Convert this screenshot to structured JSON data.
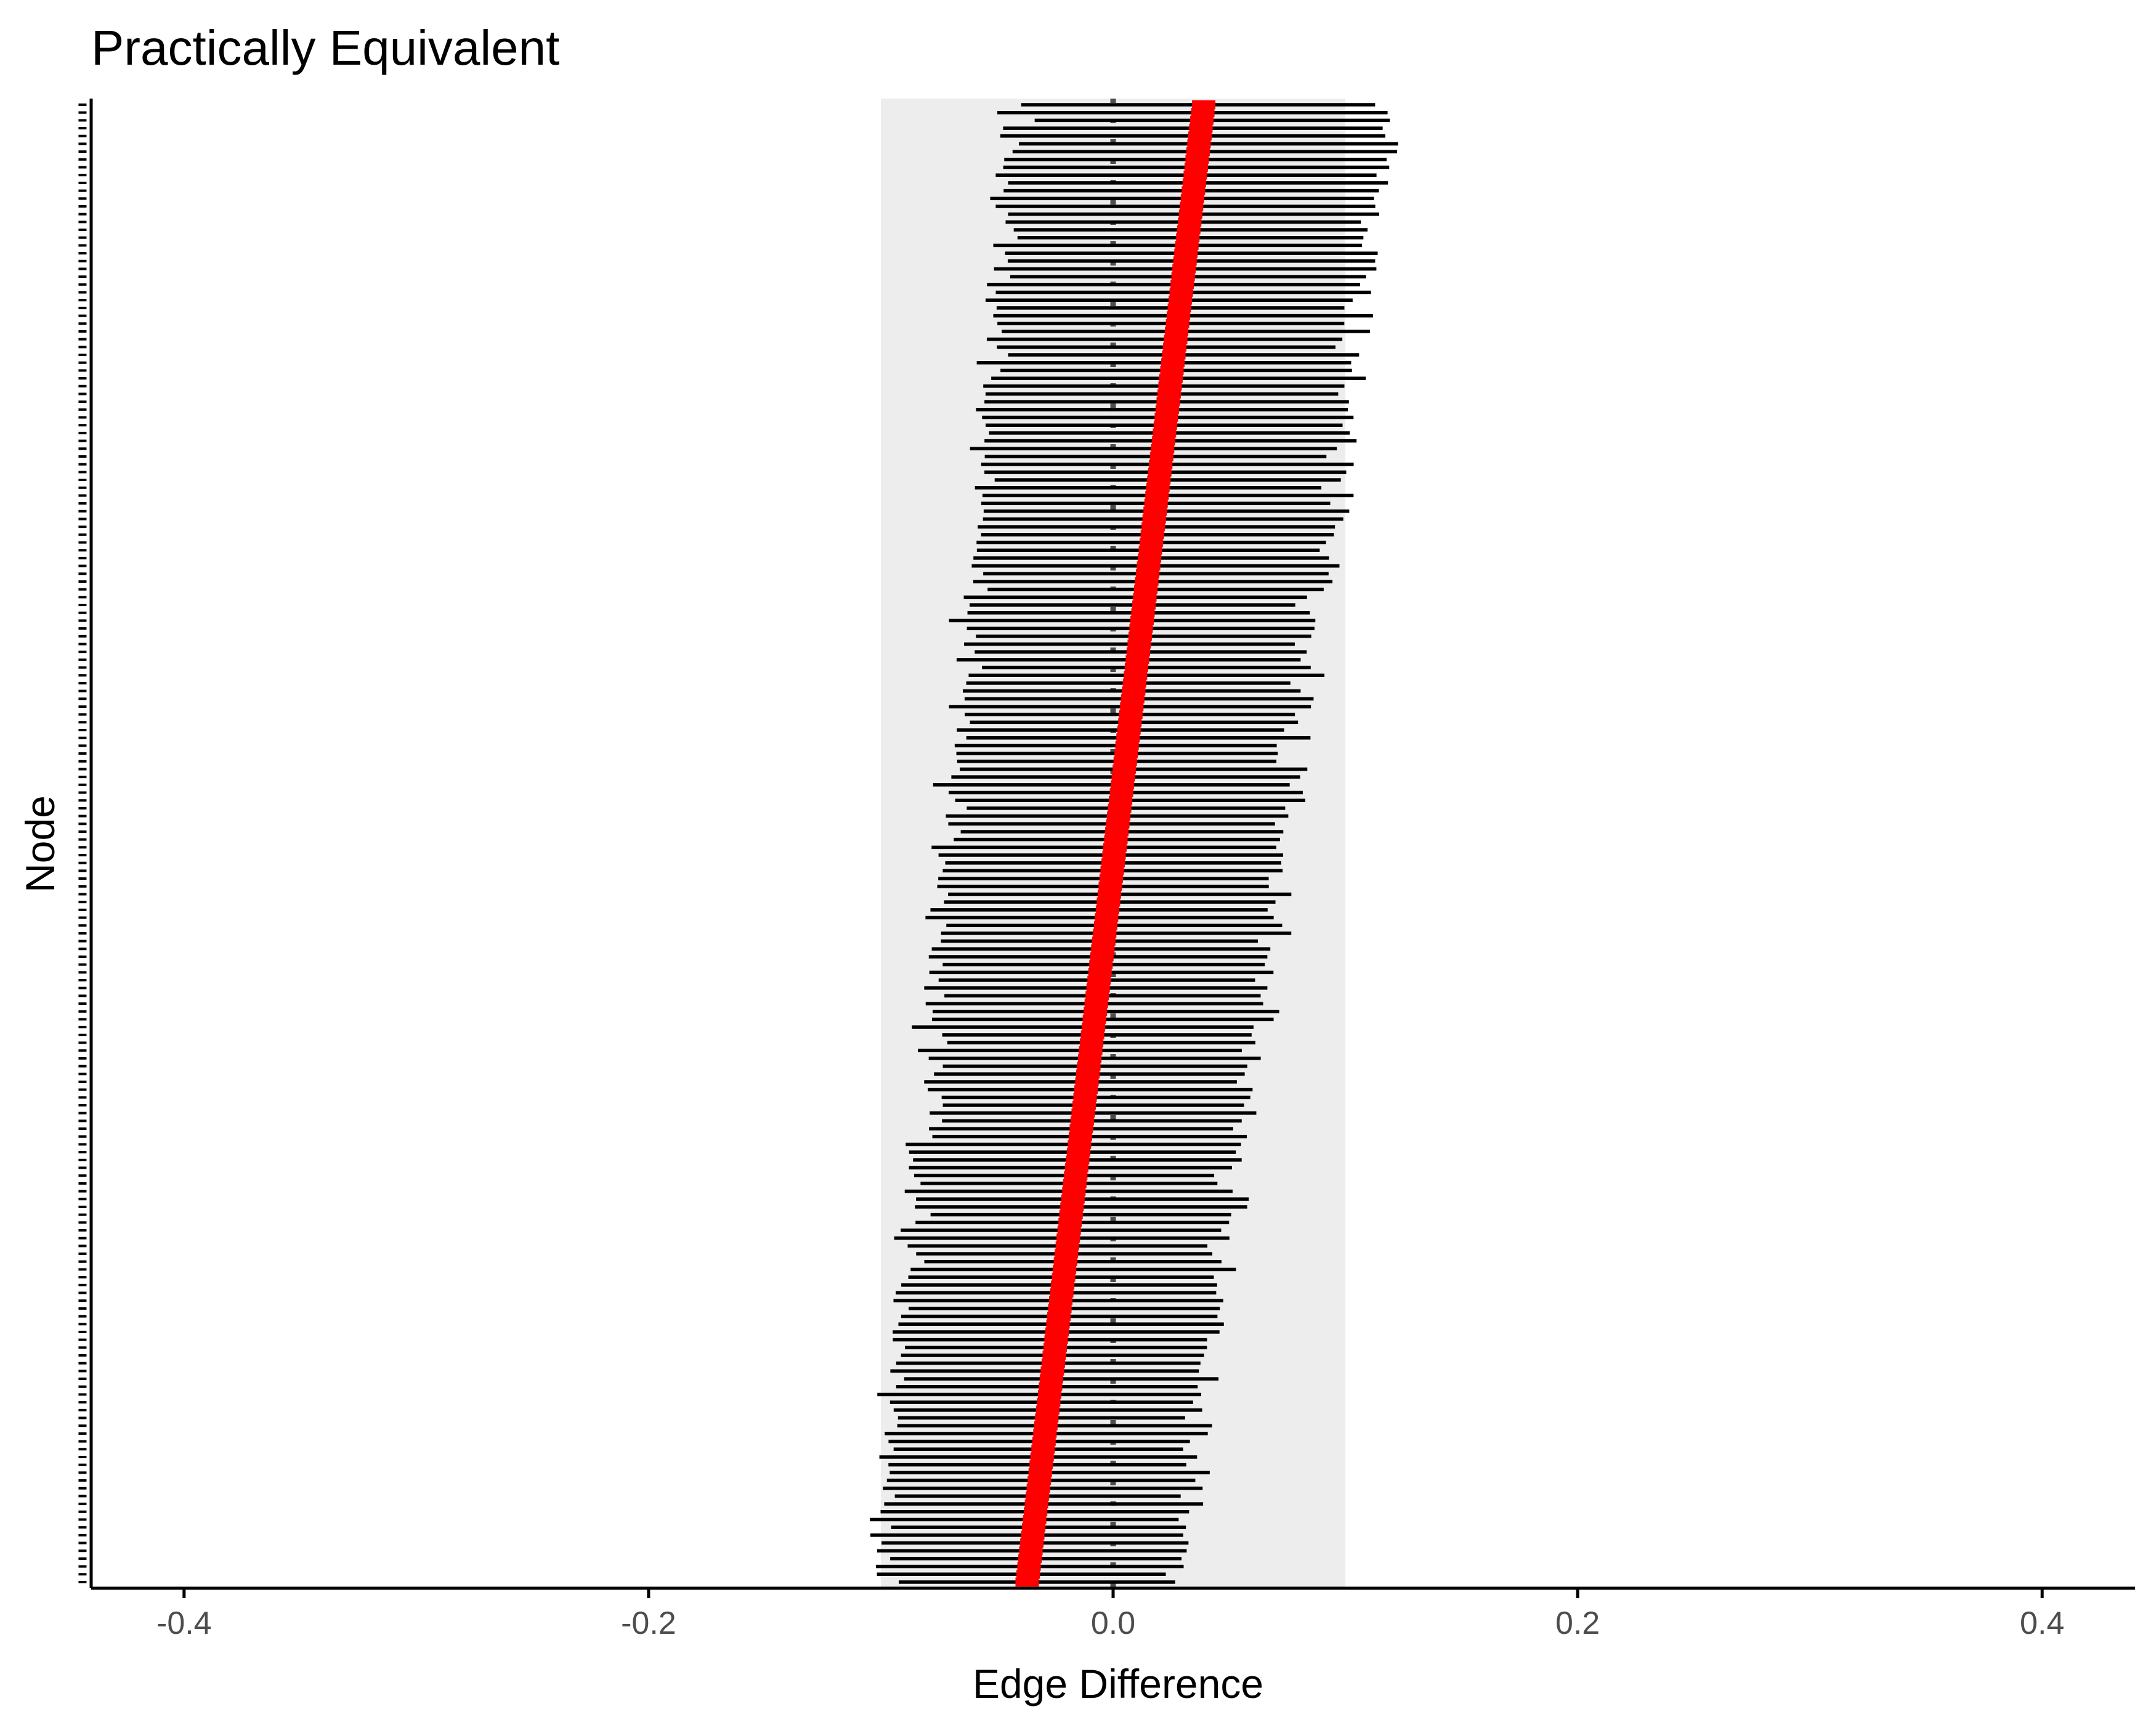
{
  "chart_data": {
    "type": "interval",
    "title": "Practically Equivalent",
    "xlabel": "Edge Difference",
    "ylabel": "Node",
    "xlim": [
      -0.44,
      0.44
    ],
    "x_ticks": [
      -0.4,
      -0.2,
      0.0,
      0.2,
      0.4
    ],
    "x_tick_labels": [
      "-0.4",
      "-0.2",
      "0.0",
      "0.2",
      "0.4"
    ],
    "rope": [
      -0.1,
      0.1
    ],
    "reference_line_x": 0.0,
    "n_edges": 190,
    "estimate_range": [
      -0.037,
      0.039
    ],
    "interval_width_range": [
      0.12,
      0.16
    ],
    "grid": false,
    "legend": "none",
    "colors": {
      "rope_band": "#ededed",
      "interval": "#000000",
      "estimate": "#ff0000",
      "reference_line": "#4d4d4d",
      "axis": "#000000"
    }
  }
}
